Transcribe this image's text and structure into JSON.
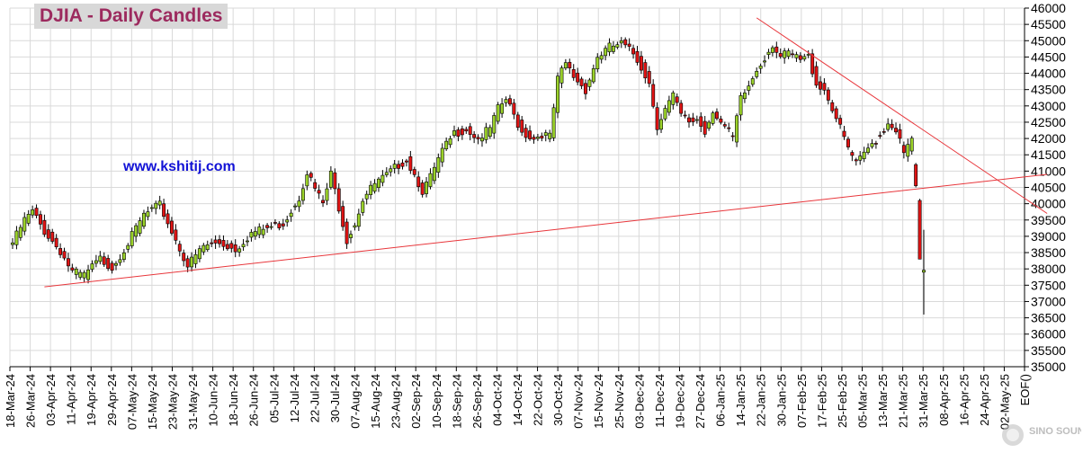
{
  "header": {
    "title": "DJIA - Daily Candles",
    "website": "www.kshitij.com"
  },
  "watermark": {
    "text": "SINO SOUND",
    "icon": "brand-logo-icon"
  },
  "colors": {
    "up": "#9bd22a",
    "down": "#e01414",
    "trendline": "#e8363b",
    "grid": "#d9d9d9",
    "title_bg": "#d8d8d8",
    "title_fg": "#9c2a5e",
    "link": "#1212d6"
  },
  "chart_data": {
    "type": "candlestick",
    "title": "DJIA - Daily Candles",
    "grid": true,
    "y_axis": {
      "position": "right",
      "ylim": [
        35000,
        46000
      ],
      "ticks": [
        35000,
        35500,
        36000,
        36500,
        37000,
        37500,
        38000,
        38500,
        39000,
        39500,
        40000,
        40500,
        41000,
        41500,
        42000,
        42500,
        43000,
        43500,
        44000,
        44500,
        45000,
        45500,
        46000
      ]
    },
    "x_tick_labels": [
      "18-Mar-24",
      "26-Mar-24",
      "03-Apr-24",
      "11-Apr-24",
      "19-Apr-24",
      "29-Apr-24",
      "07-May-24",
      "15-May-24",
      "23-May-24",
      "31-May-24",
      "10-Jun-24",
      "18-Jun-24",
      "26-Jun-24",
      "05-Jul-24",
      "12-Jul-24",
      "22-Jul-24",
      "30-Jul-24",
      "07-Aug-24",
      "15-Aug-24",
      "23-Aug-24",
      "02-Sep-24",
      "10-Sep-24",
      "18-Sep-24",
      "26-Sep-24",
      "04-Oct-24",
      "14-Oct-24",
      "22-Oct-24",
      "30-Oct-24",
      "07-Nov-24",
      "15-Nov-24",
      "25-Nov-24",
      "03-Dec-24",
      "11-Dec-24",
      "19-Dec-24",
      "27-Dec-24",
      "06-Jan-25",
      "14-Jan-25",
      "22-Jan-25",
      "30-Jan-25",
      "07-Feb-25",
      "17-Feb-25",
      "25-Feb-25",
      "05-Mar-25",
      "13-Mar-25",
      "21-Mar-25",
      "31-Mar-25",
      "08-Apr-25",
      "16-Apr-25",
      "24-Apr-25",
      "02-May-25",
      "EOF()"
    ],
    "anchor_closes": [
      [
        0,
        38800
      ],
      [
        3,
        39500
      ],
      [
        5,
        39750
      ],
      [
        8,
        39150
      ],
      [
        12,
        38550
      ],
      [
        15,
        37900
      ],
      [
        18,
        37800
      ],
      [
        22,
        38300
      ],
      [
        25,
        38050
      ],
      [
        29,
        38800
      ],
      [
        33,
        39650
      ],
      [
        37,
        39950
      ],
      [
        40,
        39150
      ],
      [
        44,
        38100
      ],
      [
        48,
        38700
      ],
      [
        52,
        38800
      ],
      [
        56,
        38600
      ],
      [
        60,
        39100
      ],
      [
        64,
        39250
      ],
      [
        68,
        39400
      ],
      [
        72,
        40200
      ],
      [
        74,
        41000
      ],
      [
        76,
        40450
      ],
      [
        78,
        40000
      ],
      [
        80,
        40900
      ],
      [
        82,
        39900
      ],
      [
        84,
        38900
      ],
      [
        86,
        39400
      ],
      [
        88,
        40150
      ],
      [
        91,
        40600
      ],
      [
        94,
        40850
      ],
      [
        97,
        41200
      ],
      [
        99,
        41350
      ],
      [
        101,
        40900
      ],
      [
        103,
        40400
      ],
      [
        105,
        40800
      ],
      [
        108,
        41600
      ],
      [
        111,
        42150
      ],
      [
        114,
        42300
      ],
      [
        117,
        42000
      ],
      [
        120,
        42300
      ],
      [
        122,
        42900
      ],
      [
        124,
        43200
      ],
      [
        126,
        42700
      ],
      [
        128,
        42200
      ],
      [
        131,
        42000
      ],
      [
        133,
        42150
      ],
      [
        135,
        42050
      ],
      [
        137,
        43800
      ],
      [
        139,
        44300
      ],
      [
        141,
        43900
      ],
      [
        144,
        43500
      ],
      [
        147,
        44500
      ],
      [
        150,
        44800
      ],
      [
        153,
        44900
      ],
      [
        156,
        44600
      ],
      [
        158,
        44200
      ],
      [
        160,
        43700
      ],
      [
        162,
        42400
      ],
      [
        164,
        42900
      ],
      [
        166,
        43300
      ],
      [
        168,
        42700
      ],
      [
        170,
        42500
      ],
      [
        172,
        42600
      ],
      [
        174,
        42200
      ],
      [
        176,
        42900
      ],
      [
        178,
        42500
      ],
      [
        181,
        42000
      ],
      [
        183,
        43200
      ],
      [
        185,
        43600
      ],
      [
        187,
        44100
      ],
      [
        189,
        44500
      ],
      [
        191,
        44900
      ],
      [
        193,
        44500
      ],
      [
        195,
        44600
      ],
      [
        198,
        44400
      ],
      [
        200,
        44500
      ],
      [
        202,
        43700
      ],
      [
        204,
        43500
      ],
      [
        206,
        42950
      ],
      [
        208,
        42300
      ],
      [
        210,
        41700
      ],
      [
        212,
        41200
      ],
      [
        214,
        41500
      ],
      [
        216,
        41850
      ],
      [
        218,
        42100
      ],
      [
        220,
        42500
      ],
      [
        222,
        42300
      ],
      [
        224,
        41500
      ],
      [
        226,
        42000
      ],
      [
        227,
        40550
      ],
      [
        228,
        38300
      ],
      [
        229,
        37960
      ]
    ],
    "last_candles": [
      {
        "date": "03-Apr-25",
        "open": 41200,
        "high": 41250,
        "low": 40500,
        "close": 40550
      },
      {
        "date": "04-Apr-25",
        "open": 40100,
        "high": 40150,
        "low": 38300,
        "close": 38300
      },
      {
        "date": "07-Apr-25",
        "open": 37900,
        "high": 39200,
        "low": 36600,
        "close": 37960
      }
    ],
    "trendlines": [
      {
        "name": "rising-support",
        "x1": 8,
        "y1": 37450,
        "x2": 260,
        "y2": 40900
      },
      {
        "name": "falling-resistance",
        "x1": 187,
        "y1": 45700,
        "x2": 260,
        "y2": 39700
      }
    ]
  }
}
